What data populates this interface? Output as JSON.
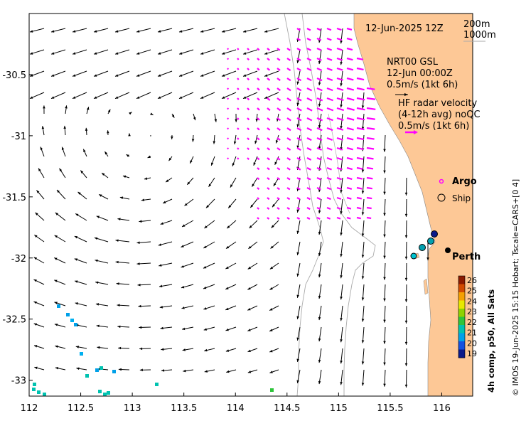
{
  "map": {
    "x_ticks": [
      "112",
      "112.5",
      "113",
      "113.5",
      "114",
      "114.5",
      "115",
      "115.5",
      "116"
    ],
    "y_ticks": [
      "-30.5",
      "-31",
      "-31.5",
      "-32",
      "-32.5",
      "-33"
    ],
    "lon_range": [
      112,
      116.3
    ],
    "lat_range": [
      -33.13,
      -30.0
    ],
    "y_ticks_values": [
      -30.5,
      -31,
      -31.5,
      -32,
      -32.5,
      -33
    ],
    "x_ticks_values": [
      112,
      112.5,
      113,
      113.5,
      114,
      114.5,
      115,
      115.5,
      116
    ],
    "land_color": "#fdc896",
    "radar_color": "#ff00ff",
    "isobath_color": "#aaaaaa"
  },
  "header": {
    "timestamp": "12-Jun-2025 12Z",
    "isobath_200": "200m",
    "isobath_1000": "1000m"
  },
  "legend": {
    "nrt_title": "NRT00 GSL",
    "nrt_date": "12-Jun 00:00Z",
    "nrt_scale": "0.5m/s (1kt 6h)",
    "hf_title": "HF radar velocity",
    "hf_sub": "(4-12h avg) noQC",
    "hf_scale": "0.5m/s (1kt 6h)",
    "argo": "Argo",
    "ship": "Ship",
    "city": "Perth"
  },
  "colorbar": {
    "ticks": [
      "26",
      "25",
      "24",
      "23",
      "22",
      "21",
      "20",
      "19"
    ],
    "colors": [
      "#8b1a00",
      "#d24a00",
      "#f5a000",
      "#e8e800",
      "#8ed200",
      "#2ec43a",
      "#00c2b0",
      "#00a0e8",
      "#1450e0",
      "#0a1a8a"
    ],
    "label": "4h comp, p50, All Sats"
  },
  "credit": "© IMOS 19-Jun-2025 15:15 Hobart; Tscale=CARS+[0 4]"
}
